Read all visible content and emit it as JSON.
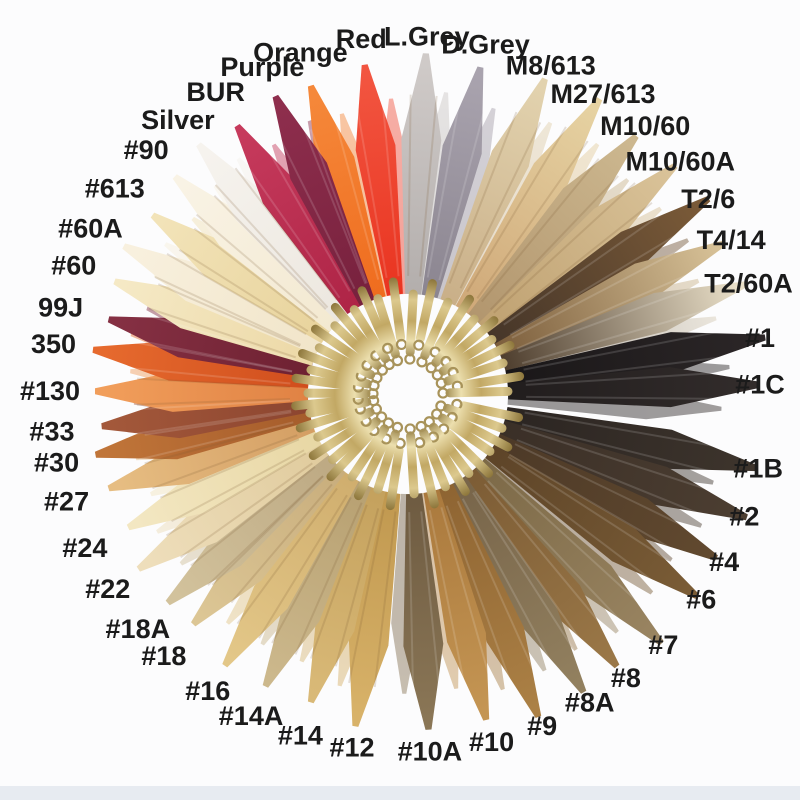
{
  "colors": {
    "background": "#fcfcfd",
    "bottom_band": "#e7ebf1",
    "label_text": "#1b1b1b",
    "clasp_gold_dark": "#8a7338",
    "clasp_gold_light": "#ecdfae",
    "clasp_gold_mid": "#c2a864",
    "loop_gold": "#a8935a"
  },
  "ring": {
    "icon_names": [
      "gold-clasp-icon",
      "gold-loop-icon"
    ],
    "swatch_count_note": "44 labeled hair swatches arranged in a ring"
  },
  "swatches": [
    {
      "label": "Orange",
      "angle": -17.5,
      "root": "#ef6c1e",
      "tip": "#f5883a"
    },
    {
      "label": "Red",
      "angle": -7.5,
      "root": "#e93420",
      "tip": "#f25540"
    },
    {
      "label": "L.Grey",
      "angle": 3,
      "root": "#b3aeac",
      "tip": "#cfcac8"
    },
    {
      "label": "D.Grey",
      "angle": 12.5,
      "root": "#8b8590",
      "tip": "#a9a3ae"
    },
    {
      "label": "M8/613",
      "angle": 23.5,
      "root": "#c9af88",
      "tip": "#e2d2ae"
    },
    {
      "label": "M27/613",
      "angle": 33,
      "root": "#cfa878",
      "tip": "#e6d2a2"
    },
    {
      "label": "M10/60",
      "angle": 41.5,
      "root": "#b2966e",
      "tip": "#ccb78f"
    },
    {
      "label": "M10/60A",
      "angle": 49.5,
      "root": "#bfa171",
      "tip": "#d9c298"
    },
    {
      "label": "T2/6",
      "angle": 57,
      "root": "#463629",
      "tip": "#7a5a38"
    },
    {
      "label": "T4/14",
      "angle": 64.5,
      "root": "#7c5e3c",
      "tip": "#d6c096"
    },
    {
      "label": "T2/60A",
      "angle": 72,
      "root": "#4e3e2e",
      "tip": "#e9dfc8"
    },
    {
      "label": "#1",
      "angle": 81,
      "root": "#1a1718",
      "tip": "#2b2627"
    },
    {
      "label": "#1C",
      "angle": 88.5,
      "root": "#211d1d",
      "tip": "#322c2b"
    },
    {
      "label": "#1B",
      "angle": 102,
      "root": "#2b2522",
      "tip": "#3d342c"
    },
    {
      "label": "#2",
      "angle": 110,
      "root": "#3a2f27",
      "tip": "#4c3e31"
    },
    {
      "label": "#4",
      "angle": 118,
      "root": "#4c3927",
      "tip": "#61492f"
    },
    {
      "label": "#6",
      "angle": 125,
      "root": "#5d4428",
      "tip": "#7a5c36"
    },
    {
      "label": "#7",
      "angle": 134.5,
      "root": "#7c6947",
      "tip": "#998461"
    },
    {
      "label": "#8",
      "angle": 142.5,
      "root": "#7c5c35",
      "tip": "#9a7747"
    },
    {
      "label": "#8A",
      "angle": 149.5,
      "root": "#776449",
      "tip": "#92805f"
    },
    {
      "label": "#9",
      "angle": 158,
      "root": "#8e6432",
      "tip": "#ab8045"
    },
    {
      "label": "#10",
      "angle": 166.5,
      "root": "#aa793d",
      "tip": "#c49553"
    },
    {
      "label": "#10A",
      "angle": 176.5,
      "root": "#6e5b41",
      "tip": "#8a7656"
    },
    {
      "label": "#12",
      "angle": 189,
      "root": "#c0984f",
      "tip": "#d8b269"
    },
    {
      "label": "#14",
      "angle": 197.5,
      "root": "#c4a15d",
      "tip": "#d9b977"
    },
    {
      "label": "#14A",
      "angle": 206,
      "root": "#b7a071",
      "tip": "#ccb88c"
    },
    {
      "label": "#16",
      "angle": 214,
      "root": "#d0ae6e",
      "tip": "#e3c788"
    },
    {
      "label": "#18",
      "angle": 223,
      "root": "#c8ad7c",
      "tip": "#dcc695"
    },
    {
      "label": "#18A",
      "angle": 229,
      "root": "#bda983",
      "tip": "#d2c29c"
    },
    {
      "label": "#22",
      "angle": 237,
      "root": "#e0cb9d",
      "tip": "#eedebb"
    },
    {
      "label": "#24",
      "angle": 244.5,
      "root": "#e8d7a4",
      "tip": "#f3e7c2"
    },
    {
      "label": "#27",
      "angle": 252.5,
      "root": "#d49e63",
      "tip": "#e6bd82"
    },
    {
      "label": "#30",
      "angle": 259,
      "root": "#a55c2b",
      "tip": "#c07539"
    },
    {
      "label": "#33",
      "angle": 264,
      "root": "#8c4530",
      "tip": "#a3583a"
    },
    {
      "label": "#130",
      "angle": 270.5,
      "root": "#e08244",
      "tip": "#f19e5b"
    },
    {
      "label": "350",
      "angle": 278,
      "root": "#d04e1d",
      "tip": "#e66a2e"
    },
    {
      "label": "99J",
      "angle": 284,
      "root": "#6e2132",
      "tip": "#853043"
    },
    {
      "label": "#60",
      "angle": 291,
      "root": "#ecd8a6",
      "tip": "#f5e9c5"
    },
    {
      "label": "#60A",
      "angle": 297.5,
      "root": "#f1e5c9",
      "tip": "#f8f0de"
    },
    {
      "label": "#613",
      "angle": 305,
      "root": "#e8d39c",
      "tip": "#f2e3b8"
    },
    {
      "label": "#90",
      "angle": 313,
      "root": "#f3e9d1",
      "tip": "#f9f3e5"
    },
    {
      "label": "Silver",
      "angle": 320,
      "root": "#ece7df",
      "tip": "#f6f3ee"
    },
    {
      "label": "BUR",
      "angle": 327.5,
      "root": "#ae2446",
      "tip": "#c63a5c"
    },
    {
      "label": "Purple",
      "angle": 336,
      "root": "#77213d",
      "tip": "#8e2e4d"
    }
  ]
}
